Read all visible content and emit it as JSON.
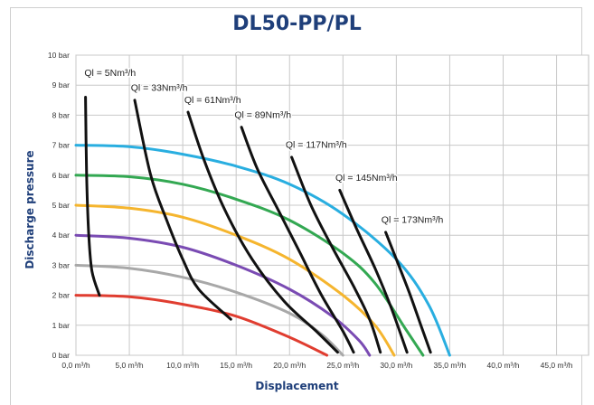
{
  "chart_data": {
    "type": "line",
    "title": "DL50-PP/PL",
    "xlabel": "Displacement",
    "ylabel": "Discharge pressure",
    "xlim": [
      0,
      48
    ],
    "ylim": [
      0,
      10
    ],
    "x_ticks": [
      0,
      5,
      10,
      15,
      20,
      25,
      30,
      35,
      40,
      45
    ],
    "x_tick_labels": [
      "0,0 m³/h",
      "5,0 m³/h",
      "10,0 m³/h",
      "15,0 m³/h",
      "20,0 m³/h",
      "25,0 m³/h",
      "30,0 m³/h",
      "35,0 m³/h",
      "40,0 m³/h",
      "45,0 m³/h"
    ],
    "y_ticks": [
      0,
      1,
      2,
      3,
      4,
      5,
      6,
      7,
      8,
      9,
      10
    ],
    "y_tick_labels": [
      "0 bar",
      "1 bar",
      "2 bar",
      "3 bar",
      "4 bar",
      "5 bar",
      "6 bar",
      "7 bar",
      "8 bar",
      "9 bar",
      "10 bar"
    ],
    "grid": true,
    "pressure_curves": [
      {
        "color": "#29aee0",
        "points": [
          [
            0,
            7.0
          ],
          [
            5,
            6.95
          ],
          [
            10,
            6.7
          ],
          [
            15,
            6.3
          ],
          [
            20,
            5.7
          ],
          [
            25,
            4.7
          ],
          [
            30,
            3.2
          ],
          [
            33,
            1.7
          ],
          [
            35,
            0
          ]
        ]
      },
      {
        "color": "#33a852",
        "points": [
          [
            0,
            6.0
          ],
          [
            5,
            5.95
          ],
          [
            10,
            5.7
          ],
          [
            15,
            5.2
          ],
          [
            20,
            4.5
          ],
          [
            25,
            3.4
          ],
          [
            28,
            2.4
          ],
          [
            31,
            0.8
          ],
          [
            32.5,
            0
          ]
        ]
      },
      {
        "color": "#f5b52e",
        "points": [
          [
            0,
            5.0
          ],
          [
            5,
            4.9
          ],
          [
            10,
            4.6
          ],
          [
            15,
            4.0
          ],
          [
            20,
            3.2
          ],
          [
            25,
            2.0
          ],
          [
            28,
            1.0
          ],
          [
            29.8,
            0
          ]
        ]
      },
      {
        "color": "#7a4bb3",
        "points": [
          [
            0,
            4.0
          ],
          [
            5,
            3.9
          ],
          [
            10,
            3.6
          ],
          [
            15,
            3.0
          ],
          [
            20,
            2.2
          ],
          [
            24,
            1.3
          ],
          [
            26.5,
            0.5
          ],
          [
            27.5,
            0
          ]
        ]
      },
      {
        "color": "#a8a8a8",
        "points": [
          [
            0,
            3.0
          ],
          [
            5,
            2.9
          ],
          [
            10,
            2.6
          ],
          [
            15,
            2.1
          ],
          [
            20,
            1.4
          ],
          [
            23,
            0.7
          ],
          [
            25,
            0
          ]
        ]
      },
      {
        "color": "#e03d30",
        "points": [
          [
            0,
            2.0
          ],
          [
            5,
            1.95
          ],
          [
            10,
            1.7
          ],
          [
            15,
            1.3
          ],
          [
            20,
            0.6
          ],
          [
            23.5,
            0
          ]
        ]
      }
    ],
    "flow_curves": [
      {
        "label": "Ql = 5Nm³/h",
        "label_at": [
          3.2,
          9.4
        ],
        "points": [
          [
            0.9,
            8.6
          ],
          [
            1.0,
            6.0
          ],
          [
            1.2,
            4.0
          ],
          [
            1.5,
            2.8
          ],
          [
            2.2,
            2.0
          ]
        ]
      },
      {
        "label": "Ql = 33Nm³/h",
        "label_at": [
          7.8,
          8.9
        ],
        "points": [
          [
            5.5,
            8.5
          ],
          [
            7.0,
            6.0
          ],
          [
            8.5,
            4.5
          ],
          [
            10.0,
            3.2
          ],
          [
            11.5,
            2.2
          ],
          [
            14.5,
            1.2
          ]
        ]
      },
      {
        "label": "Ql = 61Nm³/h",
        "label_at": [
          12.8,
          8.5
        ],
        "points": [
          [
            10.5,
            8.1
          ],
          [
            12.0,
            6.5
          ],
          [
            14.0,
            4.8
          ],
          [
            16.5,
            3.2
          ],
          [
            19.5,
            1.8
          ],
          [
            22.5,
            0.8
          ],
          [
            24.5,
            0.1
          ]
        ]
      },
      {
        "label": "Ql = 89Nm³/h",
        "label_at": [
          17.5,
          8.0
        ],
        "points": [
          [
            15.5,
            7.6
          ],
          [
            17.0,
            6.2
          ],
          [
            19.0,
            4.8
          ],
          [
            21.0,
            3.4
          ],
          [
            23.0,
            2.0
          ],
          [
            25.0,
            0.8
          ],
          [
            26.0,
            0.1
          ]
        ]
      },
      {
        "label": "Ql = 117Nm³/h",
        "label_at": [
          22.5,
          7.0
        ],
        "points": [
          [
            20.2,
            6.6
          ],
          [
            22.0,
            5.0
          ],
          [
            24.0,
            3.6
          ],
          [
            26.0,
            2.3
          ],
          [
            27.5,
            1.2
          ],
          [
            28.5,
            0.1
          ]
        ]
      },
      {
        "label": "Ql = 145Nm³/h",
        "label_at": [
          27.2,
          5.9
        ],
        "points": [
          [
            24.7,
            5.5
          ],
          [
            26.3,
            4.2
          ],
          [
            28.0,
            2.9
          ],
          [
            29.5,
            1.6
          ],
          [
            31.0,
            0.1
          ]
        ]
      },
      {
        "label": "Ql = 173Nm³/h",
        "label_at": [
          31.5,
          4.5
        ],
        "points": [
          [
            29.0,
            4.1
          ],
          [
            30.0,
            3.2
          ],
          [
            31.2,
            2.1
          ],
          [
            32.3,
            1.0
          ],
          [
            33.2,
            0.1
          ]
        ]
      }
    ]
  }
}
